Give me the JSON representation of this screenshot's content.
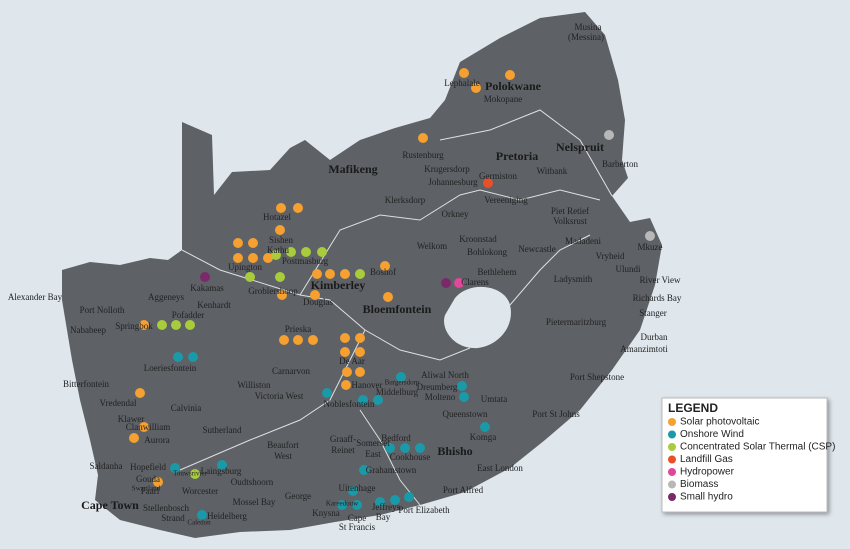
{
  "places": [
    "Musina",
    "(Messina)",
    "Lephalale",
    "Polokwane",
    "Mokopane",
    "Rustenburg",
    "Pretoria",
    "Nelspruit",
    "Barberton",
    "Krugersdorp",
    "Mafikeng",
    "Johannesburg",
    "Germiston",
    "Witbank",
    "Klerksdorp",
    "Vereeniging",
    "Orkney",
    "Piet Retief",
    "Volksrust",
    "Hotazel",
    "Sishen",
    "Kathu",
    "Kroonstad",
    "Bohlokong",
    "Newcastle",
    "Madadeni",
    "Mkuze",
    "Vryheid",
    "Ulundi",
    "Welkom",
    "Postmasburg",
    "Upington",
    "Ladysmith",
    "River View",
    "Bethlehem",
    "Clarens",
    "Boshof",
    "Kimberley",
    "Groblershoop",
    "Kakamas",
    "Richards Bay",
    "Alexander Bay",
    "Aggeneys",
    "Kenhardt",
    "Port Nolloth",
    "Douglas",
    "Bloemfontein",
    "Pofadder",
    "Stanger",
    "Pietermaritzburg",
    "Springbok",
    "Nababeep",
    "Prieska",
    "Durban",
    "Amanzimtoti",
    "Loeriesfontein",
    "De Aar",
    "Aliwal North",
    "Carnarvon",
    "Port Shepstone",
    "Bitterfontein",
    "Williston",
    "Hanover",
    "Burgersdorp",
    "Dreumberg",
    "Middelburg",
    "Molteno",
    "Umtata",
    "Vredendal",
    "Victoria West",
    "Noblesfontein",
    "Port St Johns",
    "Calvinia",
    "Queenstown",
    "Klawer",
    "Clanwilliam",
    "Sutherland",
    "Komga",
    "Aurora",
    "Graaff-",
    "Reinet",
    "Bedford",
    "Somerset",
    "East",
    "Beaufort",
    "West",
    "Bhisho",
    "Cookhouse",
    "Saldanha",
    "Hopefield",
    "Laingsburg",
    "East London",
    "Touwsrivier",
    "Grahamstown",
    "Oudtshoorn",
    "Gouda",
    "Swartland",
    "Paarl",
    "Worcester",
    "Uitenhage",
    "Port Alfred",
    "George",
    "Mossel Bay",
    "Cape Town",
    "Kareedouw",
    "Port Elizabeth",
    "Stellenbosch",
    "Strand",
    "Heidelberg",
    "Knysna",
    "Jeffreys",
    "Bay",
    "Cape",
    "St Francis",
    "Caledon"
  ],
  "legend": {
    "title": "LEGEND",
    "items": [
      {
        "label": "Solar photovoltaic",
        "color": "#f5a030"
      },
      {
        "label": "Onshore Wind",
        "color": "#1a9aa8"
      },
      {
        "label": "Concentrated Solar Thermal (CSP)",
        "color": "#a8cc3c"
      },
      {
        "label": "Landfill Gas",
        "color": "#e8502a"
      },
      {
        "label": "Hydropower",
        "color": "#e0489a"
      },
      {
        "label": "Biomass",
        "color": "#b8b8b8"
      },
      {
        "label": "Small hydro",
        "color": "#7a2a6a"
      }
    ]
  }
}
